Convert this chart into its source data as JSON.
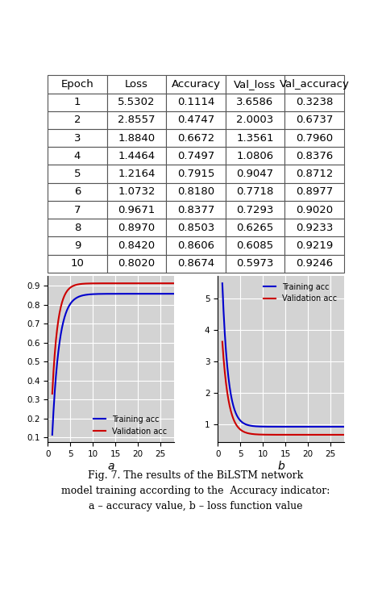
{
  "table_headers": [
    "Epoch",
    "Loss",
    "Accuracy",
    "Val_loss",
    "Val_accuracy"
  ],
  "table_data": [
    [
      1,
      5.5302,
      0.1114,
      3.6586,
      0.3238
    ],
    [
      2,
      2.8557,
      0.4747,
      2.0003,
      0.6737
    ],
    [
      3,
      1.884,
      0.6672,
      1.3561,
      0.796
    ],
    [
      4,
      1.4464,
      0.7497,
      1.0806,
      0.8376
    ],
    [
      5,
      1.2164,
      0.7915,
      0.9047,
      0.8712
    ],
    [
      6,
      1.0732,
      0.818,
      0.7718,
      0.8977
    ],
    [
      7,
      0.9671,
      0.8377,
      0.7293,
      0.902
    ],
    [
      8,
      0.897,
      0.8503,
      0.6265,
      0.9233
    ],
    [
      9,
      0.842,
      0.8606,
      0.6085,
      0.9219
    ],
    [
      10,
      0.802,
      0.8674,
      0.5973,
      0.9246
    ]
  ],
  "plot_epochs": 28,
  "training_acc_color": "#0000cd",
  "validation_acc_color": "#cc0000",
  "plot_bg_color": "#d3d3d3",
  "fig_bg_color": "#ffffff",
  "legend_labels": [
    "Training acc",
    "Validation acc"
  ],
  "subplot_a_label": "a",
  "subplot_b_label": "b",
  "caption_line1": "Fig. 7. The results of the BiLSTM network",
  "caption_line2": "model training according to the  Accuracy indicator:",
  "caption_line3": "a – accuracy value, b – loss function value"
}
